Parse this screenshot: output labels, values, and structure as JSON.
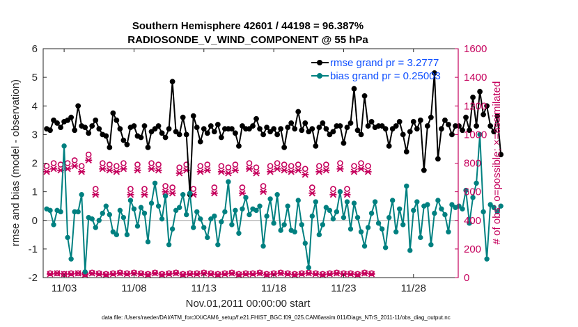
{
  "chart_data": {
    "type": "line",
    "title": "Southern Hemisphere 42601 / 44198 = 96.387%",
    "subtitle": "RADIOSONDE_V_WIND_COMPONENT @ 55 hPa",
    "xlabel": "Nov.01,2011 00:00:00 start",
    "ylabel_left": "rmse and bias (model - observation)",
    "ylabel_right": "# of obs: o=possible; ×=assimilated",
    "footer": "data file: /Users/raeder/DAI/ATM_forcXX/CAM6_setup/f.e21.FHIST_BGC.f09_025.CAM6assim.011/Diags_NTrS_2011-11/obs_diag_output.nc",
    "xlim": [
      1.5,
      31.2
    ],
    "ylim_left": [
      -2,
      6
    ],
    "ylim_right": [
      0,
      1600
    ],
    "x_ticks": [
      3,
      8,
      13,
      18,
      23,
      28
    ],
    "x_tick_labels": [
      "11/03",
      "11/08",
      "11/13",
      "11/18",
      "11/23",
      "11/28"
    ],
    "y_ticks_left": [
      -2,
      -1,
      0,
      1,
      2,
      3,
      4,
      5,
      6
    ],
    "y_ticks_right": [
      0,
      200,
      400,
      600,
      800,
      1000,
      1200,
      1400,
      1600
    ],
    "x_start": 1.75,
    "x_step": 0.25,
    "series": [
      {
        "name": "rmse grand pr = 3.2777",
        "color": "#000000",
        "axis": "left",
        "marker": "hexagram",
        "values": [
          3.2,
          3.15,
          3.5,
          3.4,
          3.25,
          3.45,
          3.5,
          3.6,
          3.15,
          4.0,
          3.3,
          3.25,
          3.05,
          3.3,
          3.5,
          3.2,
          3.0,
          2.95,
          2.55,
          3.75,
          3.5,
          3.2,
          2.8,
          2.65,
          3.25,
          3.3,
          2.95,
          2.9,
          3.3,
          2.55,
          3.1,
          3.2,
          3.3,
          3.05,
          2.9,
          3.2,
          4.85,
          3.1,
          3.0,
          3.6,
          3.0,
          0.9,
          3.65,
          3.25,
          2.75,
          3.2,
          3.05,
          3.3,
          3.1,
          3.35,
          2.9,
          3.2,
          3.2,
          3.2,
          3.05,
          2.6,
          3.3,
          3.2,
          3.2,
          3.3,
          3.55,
          3.2,
          3.0,
          3.25,
          3.1,
          3.2,
          3.0,
          3.2,
          2.55,
          3.25,
          3.4,
          3.2,
          3.8,
          3.15,
          3.4,
          3.1,
          3.2,
          2.6,
          3.25,
          3.4,
          3.2,
          3.0,
          3.1,
          3.3,
          3.3,
          2.7,
          3.25,
          3.4,
          4.6,
          3.15,
          3.0,
          4.35,
          3.3,
          3.45,
          3.25,
          3.3,
          3.3,
          3.2,
          2.6,
          3.2,
          3.3,
          3.45,
          3.0,
          2.4,
          3.1,
          3.45,
          3.2,
          3.5,
          1.75,
          3.3,
          3.6,
          5.15,
          2.15,
          3.2,
          3.5,
          3.35,
          3.0,
          3.3,
          3.3,
          3.15,
          3.6,
          3.15,
          4.3,
          3.3,
          4.5,
          3.7,
          4.0,
          3.3,
          3.1,
          3.65,
          2.3
        ]
      },
      {
        "name": "bias grand pr = 0.25003",
        "color": "#008080",
        "axis": "left",
        "marker": "circle",
        "values": [
          0.4,
          0.35,
          -0.15,
          0.35,
          0.3,
          2.6,
          -0.6,
          -1.35,
          0.3,
          0.3,
          0.9,
          -1.8,
          0.1,
          0.05,
          -0.25,
          0.0,
          0.25,
          0.5,
          0.2,
          -0.4,
          -0.5,
          0.35,
          0.1,
          -0.5,
          0.7,
          0.4,
          -0.2,
          0.45,
          0.25,
          -0.75,
          0.6,
          1.3,
          0.5,
          0.05,
          0.85,
          -0.85,
          -0.3,
          0.35,
          0.45,
          0.9,
          0.2,
          0.95,
          -0.25,
          0.3,
          0.05,
          -0.25,
          -0.6,
          0.05,
          0.15,
          -0.85,
          -0.05,
          0.3,
          1.35,
          -0.15,
          0.35,
          -0.45,
          0.4,
          0.8,
          0.2,
          0.4,
          0.35,
          0.5,
          -0.9,
          0.15,
          0.75,
          -0.1,
          0.9,
          -0.35,
          -0.15,
          0.5,
          -0.35,
          -0.4,
          0.7,
          -0.15,
          -0.8,
          -1.65,
          0.15,
          0.65,
          -0.5,
          -0.15,
          0.45,
          0.35,
          0.05,
          0.3,
          1.0,
          0.1,
          0.65,
          -0.3,
          0.6,
          0.1,
          -0.4,
          -0.9,
          -0.25,
          0.25,
          0.65,
          -0.1,
          -0.3,
          -0.95,
          0.1,
          0.7,
          -0.4,
          0.4,
          -0.15,
          1.2,
          -1.05,
          0.35,
          0.65,
          -0.6,
          0.5,
          0.55,
          -0.85,
          0.25,
          0.7,
          0.4,
          0.2,
          -0.4,
          0.55,
          0.45,
          0.5,
          0.4,
          1.05,
          -0.1,
          0.8,
          1.3,
          3.0,
          0.3,
          -1.35,
          0.55,
          0.45,
          0.3,
          0.5
        ]
      },
      {
        "name": "# possible",
        "color": "#c5005c",
        "axis": "right",
        "marker": "o",
        "values": [
          780,
          30,
          800,
          30,
          790,
          25,
          800,
          30,
          820,
          30,
          780,
          25,
          860,
          35,
          620,
          30,
          800,
          25,
          790,
          30,
          780,
          35,
          800,
          30,
          620,
          35,
          790,
          30,
          620,
          25,
          800,
          35,
          790,
          25,
          640,
          30,
          630,
          35,
          770,
          25,
          790,
          30,
          620,
          30,
          780,
          35,
          790,
          30,
          630,
          25,
          780,
          30,
          770,
          35,
          790,
          25,
          630,
          30,
          800,
          30,
          770,
          35,
          640,
          25,
          780,
          30,
          800,
          35,
          790,
          30,
          780,
          25,
          790,
          30,
          760,
          35,
          630,
          30,
          780,
          25,
          790,
          30,
          620,
          35,
          800,
          30,
          620,
          30,
          780,
          25,
          800,
          35,
          780,
          30
        ]
      },
      {
        "name": "# assimilated",
        "color": "#c5005c",
        "axis": "right",
        "marker": "x",
        "values": [
          740,
          25,
          760,
          30,
          750,
          25,
          760,
          25,
          780,
          30,
          740,
          20,
          820,
          30,
          580,
          25,
          760,
          20,
          750,
          25,
          740,
          30,
          760,
          25,
          580,
          30,
          750,
          25,
          580,
          20,
          760,
          30,
          750,
          20,
          600,
          25,
          590,
          30,
          730,
          20,
          750,
          25,
          580,
          25,
          740,
          30,
          750,
          25,
          590,
          20,
          740,
          25,
          730,
          30,
          750,
          20,
          590,
          25,
          760,
          25,
          730,
          30,
          600,
          20,
          740,
          25,
          760,
          30,
          750,
          25,
          740,
          20,
          750,
          25,
          720,
          30,
          590,
          25,
          740,
          20,
          750,
          25,
          580,
          30,
          760,
          25,
          580,
          25,
          740,
          20,
          760,
          30,
          740,
          25
        ]
      }
    ]
  }
}
